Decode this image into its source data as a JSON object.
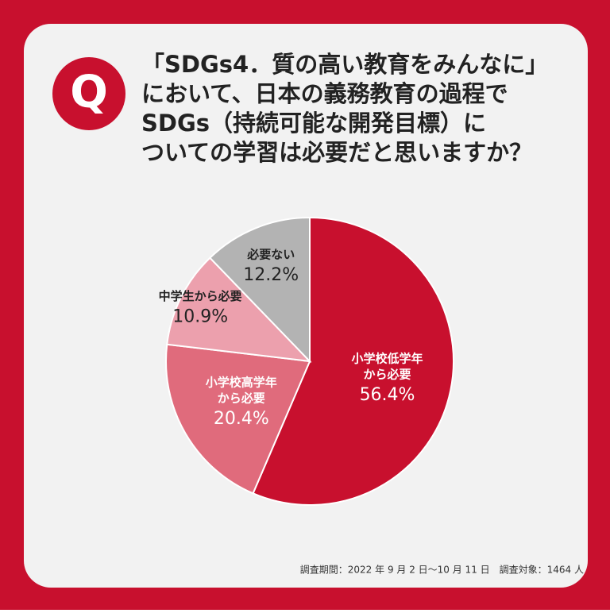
{
  "chart_data": {
    "type": "pie",
    "title": [
      "「SDGs4．質の高い教育をみんなに」",
      "において、日本の義務教育の過程で",
      "SDGs（持続可能な開発目標）に",
      "ついての学習は必要だと思いますか？"
    ],
    "badge": "Q",
    "categories": [
      [
        "小学校低学年",
        "から必要"
      ],
      [
        "小学校高学年",
        "から必要"
      ],
      [
        "中学生から必要"
      ],
      [
        "必要ない"
      ]
    ],
    "values": [
      56.4,
      20.4,
      10.9,
      12.2
    ],
    "value_labels": [
      "56.4%",
      "20.4%",
      "10.9%",
      "12.2%"
    ],
    "colors": [
      "#c8102e",
      "#e06b7c",
      "#eca0ad",
      "#b3b3b3"
    ],
    "footnote": "調査期間：2022 年 9 月 2 日〜10 月 11 日　調査対象：1464 人"
  }
}
